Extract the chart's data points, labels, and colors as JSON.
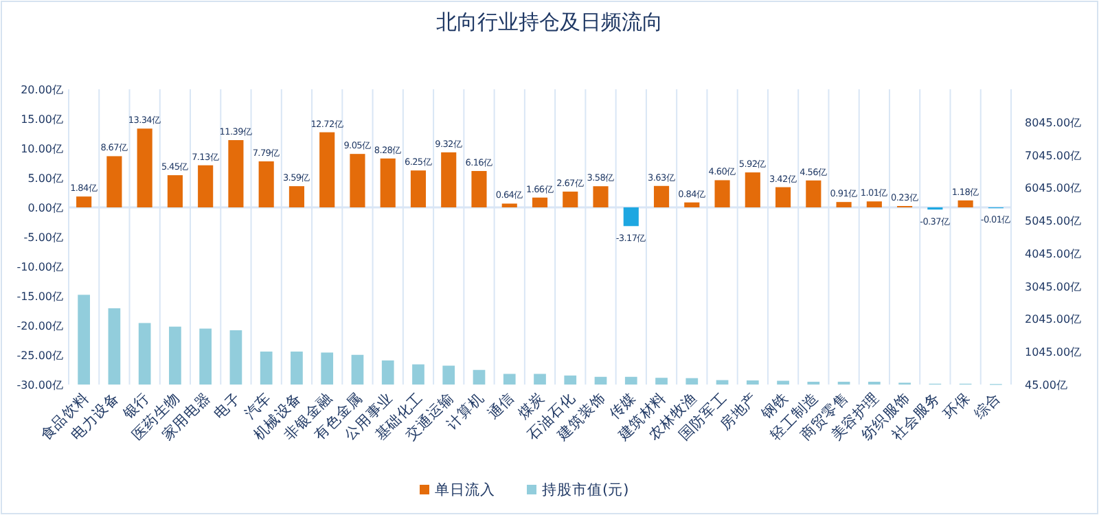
{
  "chart_data": {
    "type": "bar",
    "title": "北向行业持仓及日频流向",
    "categories": [
      "食品饮料",
      "电力设备",
      "银行",
      "医药生物",
      "家用电器",
      "电子",
      "汽车",
      "机械设备",
      "非银金融",
      "有色金属",
      "公用事业",
      "基础化工",
      "交通运输",
      "计算机",
      "通信",
      "煤炭",
      "石油石化",
      "建筑装饰",
      "传媒",
      "建筑材料",
      "农林牧渔",
      "国防军工",
      "房地产",
      "钢铁",
      "轻工制造",
      "商贸零售",
      "美容护理",
      "纺织服饰",
      "社会服务",
      "环保",
      "综合"
    ],
    "series": [
      {
        "name": "单日流入",
        "color": "#e46c0a",
        "colors": [
          "#e46c0a",
          "#e46c0a",
          "#e46c0a",
          "#e46c0a",
          "#e46c0a",
          "#e46c0a",
          "#e46c0a",
          "#e46c0a",
          "#e46c0a",
          "#e46c0a",
          "#e46c0a",
          "#e46c0a",
          "#e46c0a",
          "#e46c0a",
          "#e46c0a",
          "#e46c0a",
          "#e46c0a",
          "#e46c0a",
          "#1ea7e1",
          "#e46c0a",
          "#e46c0a",
          "#e46c0a",
          "#e46c0a",
          "#e46c0a",
          "#e46c0a",
          "#e46c0a",
          "#e46c0a",
          "#e46c0a",
          "#1ea7e1",
          "#e46c0a",
          "#1ea7e1"
        ],
        "values": [
          1.84,
          8.67,
          13.34,
          5.45,
          7.13,
          11.39,
          7.79,
          3.59,
          12.72,
          9.05,
          8.28,
          6.25,
          9.32,
          6.16,
          0.64,
          1.66,
          2.67,
          3.58,
          -3.17,
          3.63,
          0.84,
          4.6,
          5.92,
          3.42,
          4.56,
          0.91,
          1.01,
          0.23,
          -0.37,
          1.18,
          -0.01
        ],
        "value_labels": [
          "1.84亿",
          "8.67亿",
          "13.34亿",
          "5.45亿",
          "7.13亿",
          "11.39亿",
          "7.79亿",
          "3.59亿",
          "12.72亿",
          "9.05亿",
          "8.28亿",
          "6.25亿",
          "9.32亿",
          "6.16亿",
          "0.64亿",
          "1.66亿",
          "2.67亿",
          "3.58亿",
          "-3.17亿",
          "3.63亿",
          "0.84亿",
          "4.60亿",
          "5.92亿",
          "3.42亿",
          "4.56亿",
          "0.91亿",
          "1.01亿",
          "0.23亿",
          "-0.37亿",
          "1.18亿",
          "-0.01亿"
        ]
      },
      {
        "name": "持股市值(元)",
        "color": "#92cddc",
        "axis": "y2",
        "values": [
          2780,
          2370,
          1920,
          1810,
          1750,
          1700,
          1050,
          1050,
          1020,
          950,
          780,
          660,
          620,
          490,
          370,
          370,
          320,
          280,
          280,
          250,
          240,
          180,
          170,
          160,
          130,
          130,
          130,
          100,
          70,
          70,
          60
        ]
      }
    ],
    "ylim": [
      -30,
      20
    ],
    "yticks": [
      {
        "value": -30,
        "label": "-30.00亿"
      },
      {
        "value": -25,
        "label": "-25.00亿"
      },
      {
        "value": -20,
        "label": "-20.00亿"
      },
      {
        "value": -15,
        "label": "-15.00亿"
      },
      {
        "value": -10,
        "label": "-10.00亿"
      },
      {
        "value": -5,
        "label": "-5.00亿"
      },
      {
        "value": 0,
        "label": "0.00亿"
      },
      {
        "value": 5,
        "label": "5.00亿"
      },
      {
        "value": 10,
        "label": "10.00亿"
      },
      {
        "value": 15,
        "label": "15.00亿"
      },
      {
        "value": 20,
        "label": "20.00亿"
      }
    ],
    "y2lim": [
      45,
      9045
    ],
    "y2ticks": [
      {
        "value": 45,
        "label": "45.00亿"
      },
      {
        "value": 1045,
        "label": "1045.00亿"
      },
      {
        "value": 2045,
        "label": "2045.00亿"
      },
      {
        "value": 3045,
        "label": "3045.00亿"
      },
      {
        "value": 4045,
        "label": "4045.00亿"
      },
      {
        "value": 5045,
        "label": "5045.00亿"
      },
      {
        "value": 6045,
        "label": "6045.00亿"
      },
      {
        "value": 7045,
        "label": "7045.00亿"
      },
      {
        "value": 8045,
        "label": "8045.00亿"
      }
    ],
    "grid": "x",
    "legend": "bottom"
  }
}
